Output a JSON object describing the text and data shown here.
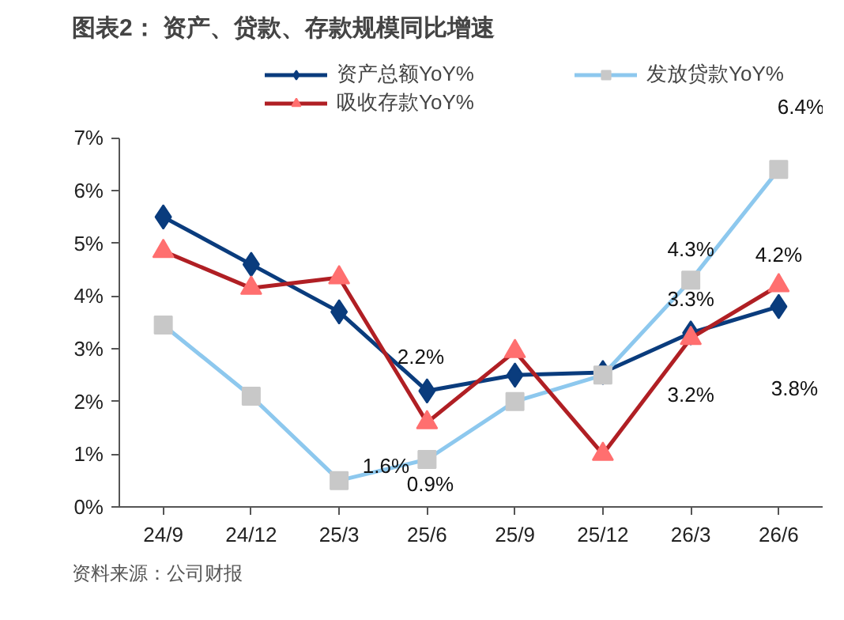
{
  "chart_data": {
    "type": "line",
    "title": "图表2： 资产、贷款、存款规模同比增速",
    "categories": [
      "24/9",
      "24/12",
      "25/3",
      "25/6",
      "25/9",
      "25/12",
      "26/3",
      "26/6"
    ],
    "series": [
      {
        "name": "资产总额YoY%",
        "color": "#0a3c7d",
        "marker": "diamond",
        "colors": [
          "#0a3c7d",
          "#0a3c7d",
          "#0a3c7d",
          "#0a3c7d",
          "#0a3c7d",
          "#0a3c7d",
          "#0a3c7d",
          "#0a3c7d"
        ],
        "values": [
          5.5,
          4.6,
          3.7,
          2.2,
          2.5,
          2.55,
          3.3,
          3.8
        ],
        "value_labels": [
          null,
          null,
          null,
          "2.2%",
          null,
          null,
          "3.3%",
          "3.8%"
        ]
      },
      {
        "name": "发放贷款YoY%",
        "color": "#8dc8ee",
        "marker": "square",
        "colors": [
          "#c8c8c8",
          "#c8c8c8",
          "#c8c8c8",
          "#c8c8c8",
          "#c8c8c8",
          "#c8c8c8",
          "#c8c8c8",
          "#c8c8c8"
        ],
        "values": [
          3.45,
          2.1,
          0.5,
          0.9,
          2.0,
          2.5,
          4.3,
          6.4
        ],
        "value_labels": [
          null,
          null,
          null,
          "0.9%",
          null,
          null,
          "4.3%",
          "6.4%"
        ]
      },
      {
        "name": "吸收存款YoY%",
        "color": "#b01f24",
        "marker": "triangle",
        "colors": [
          "#ff6f6f",
          "#ff6f6f",
          "#ff6f6f",
          "#ff6f6f",
          "#ff6f6f",
          "#ff6f6f",
          "#ff6f6f",
          "#ff6f6f"
        ],
        "values": [
          4.85,
          4.15,
          4.35,
          1.6,
          2.95,
          1.0,
          3.2,
          4.2
        ],
        "value_labels": [
          null,
          null,
          null,
          "1.6%",
          null,
          null,
          "3.2%",
          "4.2%"
        ]
      }
    ],
    "ylim": [
      0,
      7
    ],
    "yticks": [
      {
        "value": 0,
        "label": "0%"
      },
      {
        "value": 1,
        "label": "1%"
      },
      {
        "value": 2,
        "label": "2%"
      },
      {
        "value": 3,
        "label": "3%"
      },
      {
        "value": 4,
        "label": "4%"
      },
      {
        "value": 5,
        "label": "5%"
      },
      {
        "value": 6,
        "label": "6%"
      },
      {
        "value": 7,
        "label": "7%"
      }
    ],
    "grid": false,
    "legend": "top",
    "line_style": "solid",
    "annotations": [
      "资料来源：公司财报"
    ]
  }
}
